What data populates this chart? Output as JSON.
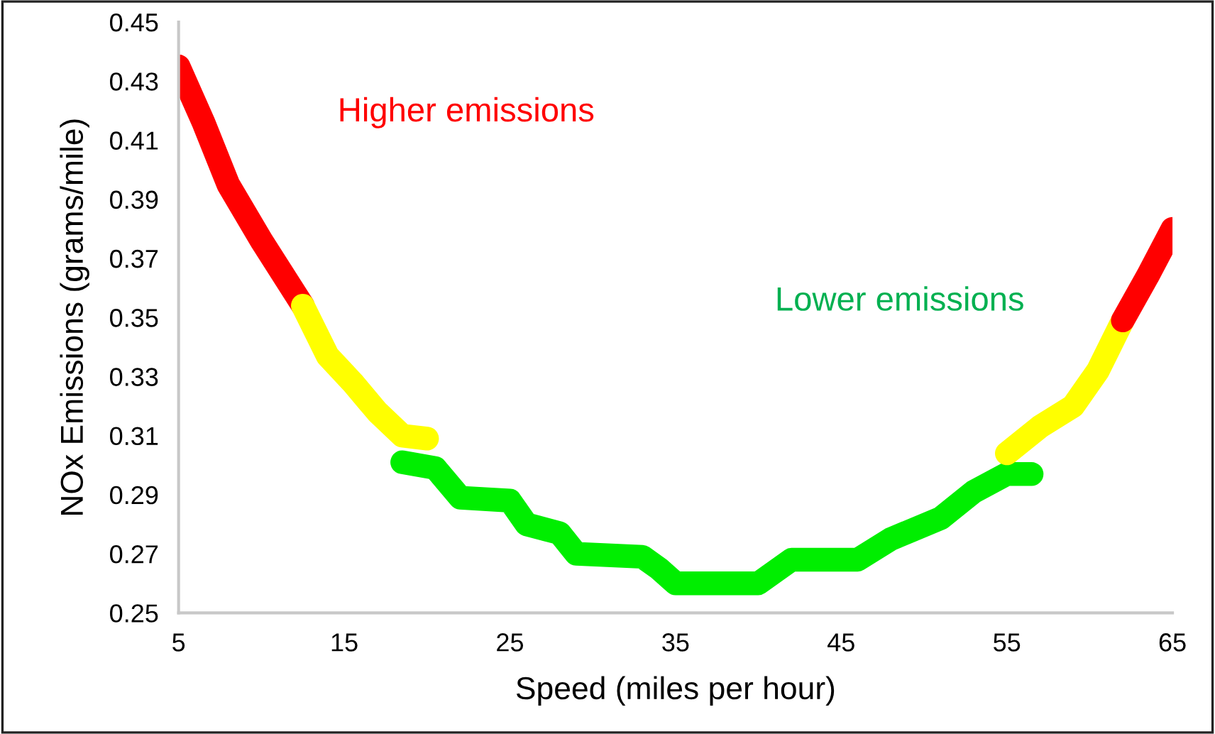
{
  "chart_data": {
    "type": "line",
    "xlabel": "Speed (miles per hour)",
    "ylabel": "NOx Emissions (grams/mile)",
    "xlim": [
      5,
      65
    ],
    "xticks": [
      5,
      15,
      25,
      35,
      45,
      55,
      65
    ],
    "ylim": [
      0.25,
      0.45
    ],
    "yticks": [
      0.25,
      0.27,
      0.29,
      0.31,
      0.33,
      0.35,
      0.37,
      0.39,
      0.41,
      0.43,
      0.45
    ],
    "grid": false,
    "legend": false,
    "line_style": "solid",
    "marker": "none",
    "annotations": [
      "Higher emissions",
      "Lower emissions"
    ],
    "series": [
      {
        "color": "#ff0000",
        "x": [
          5,
          6.5,
          8,
          10,
          12.5
        ],
        "values": [
          0.435,
          0.416,
          0.395,
          0.376,
          0.354
        ]
      },
      {
        "color": "#ffff00",
        "x": [
          12.5,
          14,
          15.5,
          17,
          18.5,
          20
        ],
        "values": [
          0.354,
          0.337,
          0.328,
          0.318,
          0.31,
          0.309
        ]
      },
      {
        "color": "#00ee00",
        "x": [
          18.5,
          20.5,
          22,
          25,
          26,
          28,
          29,
          33,
          34,
          35,
          40,
          42,
          46,
          48,
          51,
          53,
          55,
          56.5
        ],
        "values": [
          0.301,
          0.299,
          0.289,
          0.288,
          0.28,
          0.277,
          0.27,
          0.269,
          0.265,
          0.26,
          0.26,
          0.268,
          0.268,
          0.275,
          0.282,
          0.291,
          0.297,
          0.297
        ]
      },
      {
        "color": "#ffff00",
        "x": [
          55,
          57,
          59,
          60.5,
          62
        ],
        "values": [
          0.304,
          0.313,
          0.32,
          0.332,
          0.349
        ]
      },
      {
        "color": "#ff0000",
        "x": [
          62,
          63.5,
          65
        ],
        "values": [
          0.349,
          0.364,
          0.38
        ]
      }
    ]
  }
}
